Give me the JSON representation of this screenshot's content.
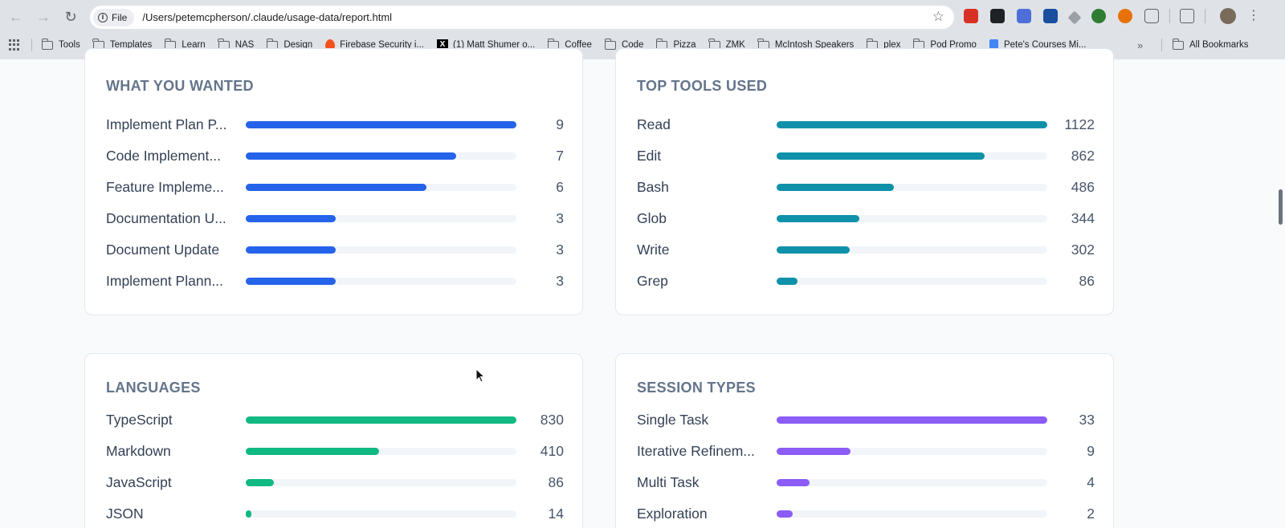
{
  "browser": {
    "file_chip": "File",
    "url": "/Users/petemcpherson/.claude/usage-data/report.html",
    "bookmarks": [
      {
        "label": "Tools",
        "icon": "folder-icon"
      },
      {
        "label": "Templates",
        "icon": "folder-icon"
      },
      {
        "label": "Learn",
        "icon": "folder-icon"
      },
      {
        "label": "NAS",
        "icon": "folder-icon"
      },
      {
        "label": "Design",
        "icon": "folder-icon"
      },
      {
        "label": "Firebase Security i...",
        "icon": "firebase-icon"
      },
      {
        "label": "(1) Matt Shumer o...",
        "icon": "x-logo-icon"
      },
      {
        "label": "Coffee",
        "icon": "folder-icon"
      },
      {
        "label": "Code",
        "icon": "folder-icon"
      },
      {
        "label": "Pizza",
        "icon": "folder-icon"
      },
      {
        "label": "ZMK",
        "icon": "folder-icon"
      },
      {
        "label": "McIntosh Speakers",
        "icon": "folder-icon"
      },
      {
        "label": "plex",
        "icon": "folder-icon"
      },
      {
        "label": "Pod Promo",
        "icon": "folder-icon"
      },
      {
        "label": "Pete's Courses Mi...",
        "icon": "doc-icon"
      }
    ],
    "all_bookmarks": "All Bookmarks"
  },
  "colors": {
    "what_you_wanted": "#2563eb",
    "top_tools": "#0e91a9",
    "languages": "#10b981",
    "session_types": "#8b5cf6"
  },
  "cards": {
    "what_you_wanted": {
      "title": "WHAT YOU WANTED",
      "max": 9,
      "rows": [
        {
          "label": "Implement Plan P...",
          "value": 9
        },
        {
          "label": "Code Implement...",
          "value": 7
        },
        {
          "label": "Feature Impleme...",
          "value": 6
        },
        {
          "label": "Documentation U...",
          "value": 3
        },
        {
          "label": "Document Update",
          "value": 3
        },
        {
          "label": "Implement Plann...",
          "value": 3
        }
      ]
    },
    "top_tools": {
      "title": "TOP TOOLS USED",
      "max": 1122,
      "rows": [
        {
          "label": "Read",
          "value": 1122
        },
        {
          "label": "Edit",
          "value": 862
        },
        {
          "label": "Bash",
          "value": 486
        },
        {
          "label": "Glob",
          "value": 344
        },
        {
          "label": "Write",
          "value": 302
        },
        {
          "label": "Grep",
          "value": 86
        }
      ]
    },
    "languages": {
      "title": "LANGUAGES",
      "max": 830,
      "rows": [
        {
          "label": "TypeScript",
          "value": 830
        },
        {
          "label": "Markdown",
          "value": 410
        },
        {
          "label": "JavaScript",
          "value": 86
        },
        {
          "label": "JSON",
          "value": 14
        }
      ]
    },
    "session_types": {
      "title": "SESSION TYPES",
      "max": 33,
      "rows": [
        {
          "label": "Single Task",
          "value": 33
        },
        {
          "label": "Iterative Refinem...",
          "value": 9
        },
        {
          "label": "Multi Task",
          "value": 4
        },
        {
          "label": "Exploration",
          "value": 2
        }
      ]
    }
  }
}
